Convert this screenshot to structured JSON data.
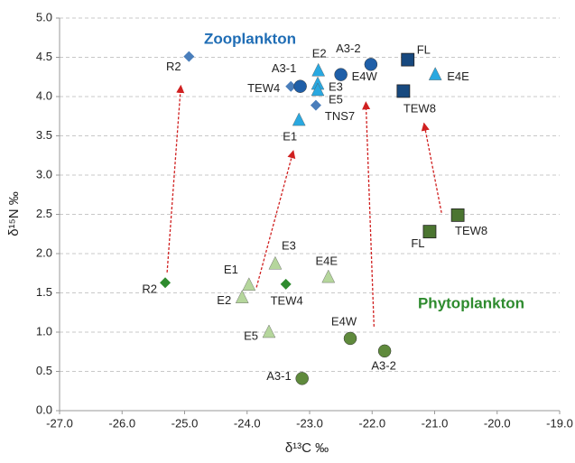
{
  "chart_data": {
    "type": "scatter",
    "xlabel": "δ¹³C ‰",
    "ylabel": "δ¹⁵N ‰",
    "xlim": [
      -27,
      -19
    ],
    "ylim": [
      0,
      5
    ],
    "xticks": [
      {
        "value": -27,
        "label": "-27.0"
      },
      {
        "value": -26,
        "label": "-26.0"
      },
      {
        "value": -25,
        "label": "-25.0"
      },
      {
        "value": -24,
        "label": "-24.0"
      },
      {
        "value": -23,
        "label": "-23.0"
      },
      {
        "value": -22,
        "label": "-22.0"
      },
      {
        "value": -21,
        "label": "-21.0"
      },
      {
        "value": -20,
        "label": "-20.0"
      },
      {
        "value": -19,
        "label": "-19.0"
      }
    ],
    "yticks": [
      {
        "value": 0,
        "label": "0.0"
      },
      {
        "value": 0.5,
        "label": "0.5"
      },
      {
        "value": 1,
        "label": "1.0"
      },
      {
        "value": 1.5,
        "label": "1.5"
      },
      {
        "value": 2,
        "label": "2.0"
      },
      {
        "value": 2.5,
        "label": "2.5"
      },
      {
        "value": 3,
        "label": "3.0"
      },
      {
        "value": 3.5,
        "label": "3.5"
      },
      {
        "value": 4,
        "label": "4.0"
      },
      {
        "value": 4.5,
        "label": "4.5"
      },
      {
        "value": 5,
        "label": "5.0"
      }
    ],
    "grid": true,
    "series": [
      {
        "name": "Zooplankton",
        "color": "#1f6db5",
        "x": [
          -24.93,
          -23.3,
          -23.15,
          -22.86,
          -22.87,
          -22.87,
          -22.9,
          -23.17,
          -22.5,
          -22.02,
          -21.43,
          -21.5,
          -20.99
        ],
        "values": [
          4.51,
          4.13,
          4.13,
          4.33,
          4.16,
          4.08,
          3.89,
          3.7,
          4.28,
          4.41,
          4.47,
          4.07,
          4.28
        ],
        "labels": [
          "R2",
          "TEW4",
          "A3-1",
          "E2",
          "E3",
          "E5",
          "TNS7",
          "E1",
          "E4W",
          "A3-2",
          "FL",
          "TEW8",
          "E4E"
        ],
        "markers": [
          "diamond",
          "diamond",
          "circle",
          "triangle",
          "triangle",
          "triangle",
          "diamond",
          "triangle",
          "circle",
          "circle",
          "square",
          "square",
          "triangle"
        ],
        "marker_colors": [
          "#4a7ebb",
          "#4a7ebb",
          "#1f5fa8",
          "#29a8e0",
          "#29a8e0",
          "#29a8e0",
          "#4a7ebb",
          "#29a8e0",
          "#1f5fa8",
          "#1f5fa8",
          "#17497f",
          "#17497f",
          "#29a8e0"
        ]
      },
      {
        "name": "Phytoplankton",
        "color": "#2e8b2e",
        "x": [
          -25.31,
          -23.97,
          -24.08,
          -23.55,
          -23.38,
          -22.7,
          -23.65,
          -22.35,
          -21.8,
          -23.12,
          -21.08,
          -20.63
        ],
        "values": [
          1.63,
          1.6,
          1.44,
          1.87,
          1.61,
          1.7,
          1.0,
          0.92,
          0.76,
          0.41,
          2.28,
          2.49
        ],
        "labels": [
          "R2",
          "E1",
          "E2",
          "E3",
          "TEW4",
          "E4E",
          "E5",
          "E4W",
          "A3-2",
          "A3-1",
          "FL",
          "TEW8"
        ],
        "markers": [
          "diamond",
          "triangle",
          "triangle",
          "triangle",
          "diamond",
          "triangle",
          "triangle",
          "circle",
          "circle",
          "circle",
          "square",
          "square"
        ],
        "marker_colors": [
          "#2e8b2e",
          "#b5d69c",
          "#b5d69c",
          "#b5d69c",
          "#2e8b2e",
          "#b5d69c",
          "#b5d69c",
          "#5f8a3c",
          "#5f8a3c",
          "#5f8a3c",
          "#4b7530",
          "#4b7530"
        ]
      }
    ],
    "arrow_color": "#d02020",
    "arrows": [
      {
        "x": [
          -25.28,
          -25.06
        ],
        "y": [
          1.76,
          4.14
        ]
      },
      {
        "x": [
          -23.85,
          -23.26
        ],
        "y": [
          1.57,
          3.31
        ]
      },
      {
        "x": [
          -21.97,
          -22.1
        ],
        "y": [
          1.07,
          3.93
        ]
      },
      {
        "x": [
          -20.89,
          -21.17
        ],
        "y": [
          2.52,
          3.66
        ]
      }
    ]
  }
}
